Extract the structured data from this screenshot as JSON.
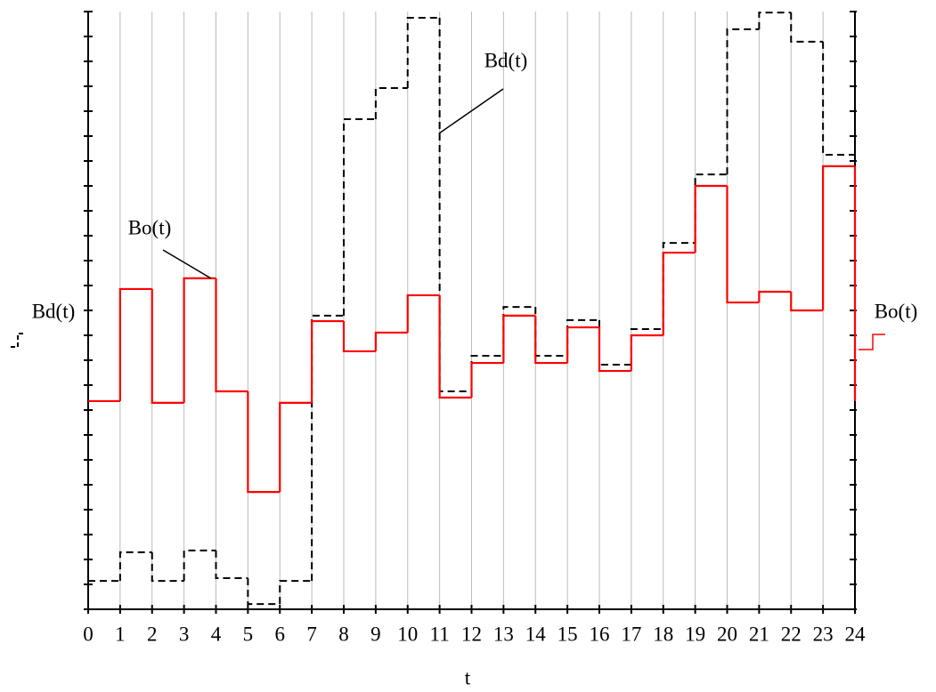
{
  "chart_data": {
    "type": "step",
    "x_label": "t",
    "y_label": "Bd(t)",
    "y2_label": "Bo(t)",
    "x": [
      0,
      1,
      2,
      3,
      4,
      5,
      6,
      7,
      8,
      9,
      10,
      11,
      12,
      13,
      14,
      15,
      16,
      17,
      18,
      19,
      20,
      21,
      22,
      23,
      24
    ],
    "xlim": [
      0,
      24
    ],
    "xticks": [
      0,
      1,
      2,
      3,
      4,
      5,
      6,
      7,
      8,
      9,
      10,
      11,
      12,
      13,
      14,
      15,
      16,
      17,
      18,
      19,
      20,
      21,
      22,
      23,
      24
    ],
    "ylim": [
      0,
      24
    ],
    "grid": true,
    "series": [
      {
        "name": "Bd(t)",
        "color": "#000000",
        "linestyle": "dashed",
        "values": [
          1.14,
          2.29,
          1.14,
          2.36,
          1.25,
          0.21,
          1.14,
          11.79,
          19.68,
          20.93,
          23.75,
          8.75,
          10.18,
          12.14,
          10.18,
          11.61,
          9.82,
          11.25,
          14.71,
          17.46,
          23.29,
          23.96,
          22.79,
          18.25,
          1.04
        ]
      },
      {
        "name": "Bo(t)",
        "color": "#ff0000",
        "linestyle": "solid",
        "values": [
          8.36,
          12.86,
          8.29,
          13.29,
          8.75,
          4.71,
          8.29,
          11.57,
          10.36,
          11.11,
          12.61,
          8.5,
          9.89,
          11.79,
          9.89,
          11.32,
          9.57,
          11.0,
          14.32,
          17.0,
          12.32,
          12.75,
          12.0,
          17.79,
          8.36
        ]
      }
    ],
    "annotations": [
      {
        "text": "Bd(t)"
      },
      {
        "text": "Bo(t)"
      }
    ]
  }
}
